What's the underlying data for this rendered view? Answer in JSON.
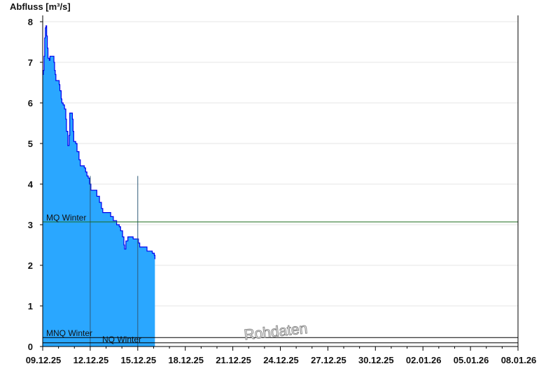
{
  "chart_data": {
    "type": "area",
    "title": "",
    "ylabel": "Abfluss [m³/s]",
    "xlabel": "",
    "ylim": [
      0,
      8
    ],
    "yticks": [
      0,
      1,
      2,
      3,
      4,
      5,
      6,
      7,
      8
    ],
    "xlim": [
      "2025-12-09",
      "2026-01-08"
    ],
    "xtick_labels": [
      "09.12.25",
      "12.12.25",
      "15.12.25",
      "18.12.25",
      "21.12.25",
      "24.12.25",
      "27.12.25",
      "30.12.25",
      "02.01.26",
      "05.01.26",
      "08.01.26"
    ],
    "grid": true,
    "fill_color": "#2aa7ff",
    "line_color": "#0000ee",
    "watermark": "Rohdaten",
    "reference_lines": [
      {
        "name": "MQ Winter",
        "value": 3.07,
        "color": "#1a6b1a"
      },
      {
        "name": "MNQ Winter",
        "value": 0.22,
        "color": "#000000"
      },
      {
        "name": "NQ Winter",
        "value": 0.09,
        "color": "#000000"
      }
    ],
    "series": [
      {
        "points": [
          [
            "2025-12-09T00:00",
            6.7
          ],
          [
            "2025-12-09T01:00",
            6.8
          ],
          [
            "2025-12-09T02:00",
            7.15
          ],
          [
            "2025-12-09T03:00",
            7.6
          ],
          [
            "2025-12-09T04:00",
            7.85
          ],
          [
            "2025-12-09T05:00",
            7.9
          ],
          [
            "2025-12-09T06:00",
            7.65
          ],
          [
            "2025-12-09T07:00",
            7.35
          ],
          [
            "2025-12-09T08:00",
            7.1
          ],
          [
            "2025-12-09T10:00",
            7.05
          ],
          [
            "2025-12-09T11:00",
            7.15
          ],
          [
            "2025-12-09T16:00",
            7.15
          ],
          [
            "2025-12-09T17:00",
            7.0
          ],
          [
            "2025-12-09T18:00",
            6.8
          ],
          [
            "2025-12-09T19:00",
            6.7
          ],
          [
            "2025-12-09T20:00",
            6.55
          ],
          [
            "2025-12-10T00:00",
            6.55
          ],
          [
            "2025-12-10T01:00",
            6.45
          ],
          [
            "2025-12-10T02:00",
            6.3
          ],
          [
            "2025-12-10T04:00",
            6.1
          ],
          [
            "2025-12-10T05:00",
            6.0
          ],
          [
            "2025-12-10T07:00",
            5.95
          ],
          [
            "2025-12-10T09:00",
            5.85
          ],
          [
            "2025-12-10T11:00",
            5.6
          ],
          [
            "2025-12-10T12:00",
            5.3
          ],
          [
            "2025-12-10T14:00",
            4.95
          ],
          [
            "2025-12-10T16:00",
            5.2
          ],
          [
            "2025-12-10T17:00",
            5.75
          ],
          [
            "2025-12-10T19:00",
            5.75
          ],
          [
            "2025-12-10T21:00",
            5.6
          ],
          [
            "2025-12-10T22:00",
            5.3
          ],
          [
            "2025-12-10T23:00",
            5.05
          ],
          [
            "2025-12-11T02:00",
            5.0
          ],
          [
            "2025-12-11T04:00",
            4.8
          ],
          [
            "2025-12-11T07:00",
            4.6
          ],
          [
            "2025-12-11T09:00",
            4.45
          ],
          [
            "2025-12-11T15:00",
            4.4
          ],
          [
            "2025-12-11T17:00",
            4.3
          ],
          [
            "2025-12-11T19:00",
            4.2
          ],
          [
            "2025-12-11T21:00",
            4.15
          ],
          [
            "2025-12-11T23:00",
            4.0
          ],
          [
            "2025-12-12T01:00",
            3.85
          ],
          [
            "2025-12-12T08:00",
            3.85
          ],
          [
            "2025-12-12T10:00",
            3.7
          ],
          [
            "2025-12-12T14:00",
            3.55
          ],
          [
            "2025-12-12T17:00",
            3.4
          ],
          [
            "2025-12-12T19:00",
            3.3
          ],
          [
            "2025-12-13T04:00",
            3.3
          ],
          [
            "2025-12-13T07:00",
            3.2
          ],
          [
            "2025-12-13T11:00",
            3.1
          ],
          [
            "2025-12-13T16:00",
            3.0
          ],
          [
            "2025-12-13T20:00",
            2.95
          ],
          [
            "2025-12-13T22:00",
            2.85
          ],
          [
            "2025-12-14T01:00",
            2.7
          ],
          [
            "2025-12-14T03:00",
            2.5
          ],
          [
            "2025-12-14T04:00",
            2.4
          ],
          [
            "2025-12-14T06:00",
            2.6
          ],
          [
            "2025-12-14T09:00",
            2.7
          ],
          [
            "2025-12-14T14:00",
            2.7
          ],
          [
            "2025-12-14T17:00",
            2.65
          ],
          [
            "2025-12-14T22:00",
            2.65
          ],
          [
            "2025-12-15T01:00",
            2.55
          ],
          [
            "2025-12-15T03:00",
            2.45
          ],
          [
            "2025-12-15T12:00",
            2.45
          ],
          [
            "2025-12-15T14:00",
            2.35
          ],
          [
            "2025-12-15T20:00",
            2.35
          ],
          [
            "2025-12-15T22:00",
            2.3
          ],
          [
            "2025-12-16T01:00",
            2.25
          ],
          [
            "2025-12-16T02:00",
            2.15
          ]
        ]
      }
    ]
  }
}
